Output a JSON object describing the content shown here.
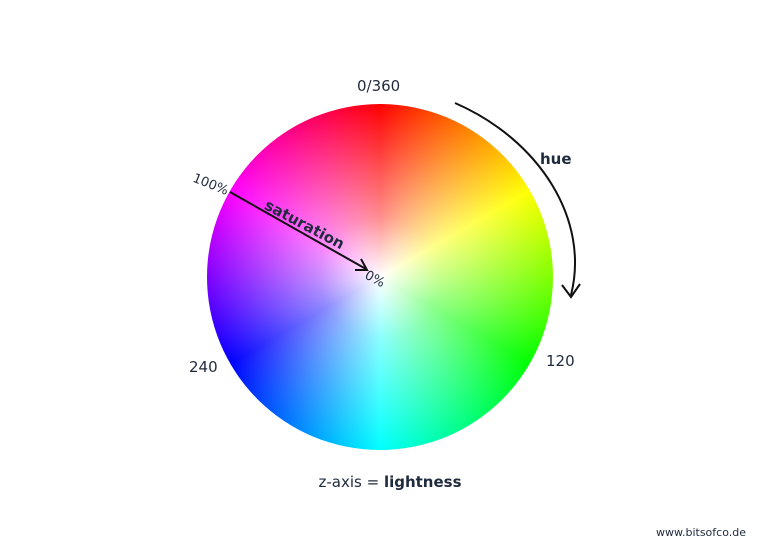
{
  "labels": {
    "hue_top": "0/360",
    "hue_green": "120",
    "hue_blue": "240",
    "hue": "hue",
    "saturation": "saturation",
    "sat_max": "100%",
    "sat_min": "0%"
  },
  "caption": {
    "prefix": "z-axis = ",
    "emphasis": "lightness"
  },
  "footer": "www.bitsofco.de",
  "colors": {
    "text": "#1f2a3d",
    "arrow": "#111111"
  }
}
